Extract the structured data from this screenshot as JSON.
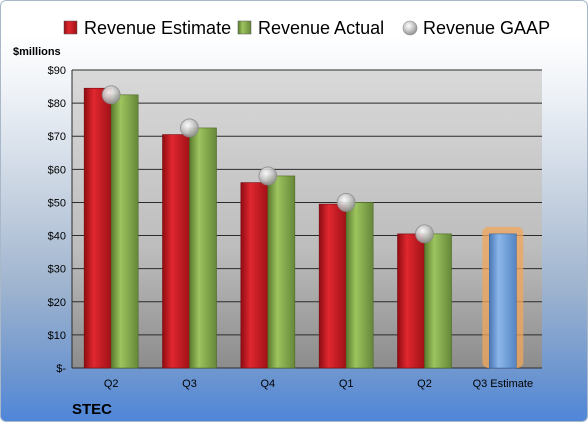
{
  "chart_data": {
    "type": "bar",
    "categories": [
      "Q2",
      "Q3",
      "Q4",
      "Q1",
      "Q2",
      "Q3 Estimate"
    ],
    "series": [
      {
        "name": "Revenue Estimate",
        "kind": "bar",
        "color": "#c0151c",
        "values": [
          84.5,
          70.5,
          56,
          49.5,
          40.5,
          null
        ]
      },
      {
        "name": "Revenue Actual",
        "kind": "bar",
        "color": "#7ea446",
        "values": [
          82.5,
          72.5,
          58,
          50,
          40.5,
          null
        ]
      },
      {
        "name": "Revenue GAAP",
        "kind": "marker",
        "color": "#b9b9b9",
        "values": [
          82.5,
          72.5,
          58,
          50,
          40.5,
          null
        ]
      },
      {
        "name": "",
        "kind": "bar",
        "color": "#6f9fd8",
        "values": [
          null,
          null,
          null,
          null,
          null,
          40.5
        ]
      }
    ],
    "ylabel": "$millions",
    "ylim": [
      0,
      90
    ],
    "yticks": [
      0,
      10,
      20,
      30,
      40,
      50,
      60,
      70,
      80,
      90
    ],
    "ytick_labels": [
      "$-",
      "$10",
      "$20",
      "$30",
      "$40",
      "$50",
      "$60",
      "$70",
      "$80",
      "$90"
    ],
    "legend_position": "top",
    "grid": true,
    "highlight": {
      "category_index": 5,
      "color": "#f2a65a"
    }
  },
  "company": "STEC"
}
